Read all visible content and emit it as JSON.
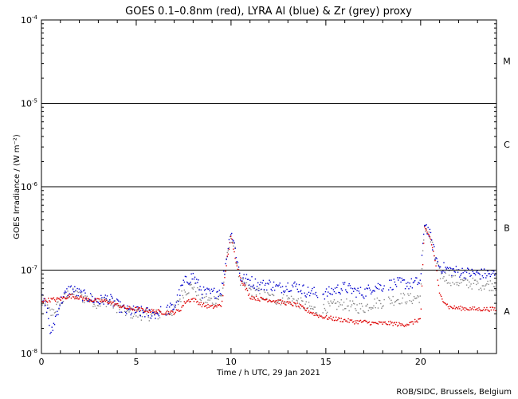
{
  "chart_data": {
    "type": "scatter",
    "title": "GOES 0.1–0.8nm (red), LYRA Al (blue) & Zr (grey) proxy",
    "xlabel": "Time / h UTC, 29 Jan 2021",
    "ylabel": "GOES Irradiance / (W m⁻²)",
    "credit": "ROB/SIDC, Brussels, Belgium",
    "xlim": [
      0,
      24
    ],
    "ylim": [
      1e-08,
      0.0001
    ],
    "yscale": "log",
    "x_ticks": [
      0,
      5,
      10,
      15,
      20
    ],
    "x_tick_labels": [
      "0",
      "5",
      "10",
      "15",
      "20"
    ],
    "y_ticks": [
      {
        "value": 0.0001,
        "base": "10",
        "exp": "-4"
      },
      {
        "value": 1e-05,
        "base": "10",
        "exp": "-5"
      },
      {
        "value": 1e-06,
        "base": "10",
        "exp": "-6"
      },
      {
        "value": 1e-07,
        "base": "10",
        "exp": "-7"
      },
      {
        "value": 1e-08,
        "base": "10",
        "exp": "-8"
      }
    ],
    "class_lines": [
      1e-05,
      1e-06,
      1e-07
    ],
    "flare_classes": [
      {
        "label": "M",
        "value": 3.2e-05
      },
      {
        "label": "C",
        "value": 3.2e-06
      },
      {
        "label": "B",
        "value": 3.2e-07
      },
      {
        "label": "A",
        "value": 3.2e-08
      }
    ],
    "series": [
      {
        "name": "GOES 0.1-0.8nm",
        "color": "#dd0000",
        "points": [
          [
            0,
            4.3e-08
          ],
          [
            0.5,
            4.4e-08
          ],
          [
            1,
            4.5e-08
          ],
          [
            1.5,
            4.9e-08
          ],
          [
            2,
            4.7e-08
          ],
          [
            2.5,
            4.4e-08
          ],
          [
            3,
            4.3e-08
          ],
          [
            3.5,
            4.2e-08
          ],
          [
            4,
            3.8e-08
          ],
          [
            4.5,
            3.5e-08
          ],
          [
            5,
            3.4e-08
          ],
          [
            5.5,
            3.3e-08
          ],
          [
            6,
            3.2e-08
          ],
          [
            6.5,
            3.1e-08
          ],
          [
            7,
            3.1e-08
          ],
          [
            7.3,
            3.3e-08
          ],
          [
            7.6,
            4.2e-08
          ],
          [
            8,
            4.5e-08
          ],
          [
            8.5,
            3.8e-08
          ],
          [
            9,
            3.6e-08
          ],
          [
            9.5,
            3.8e-08
          ],
          [
            9.8,
            1.4e-07
          ],
          [
            10,
            2.5e-07
          ],
          [
            10.2,
            1.5e-07
          ],
          [
            10.5,
            8e-08
          ],
          [
            11,
            4.8e-08
          ],
          [
            11.5,
            4.5e-08
          ],
          [
            12,
            4.4e-08
          ],
          [
            12.5,
            4.2e-08
          ],
          [
            13,
            4e-08
          ],
          [
            13.5,
            3.8e-08
          ],
          [
            14,
            3.3e-08
          ],
          [
            14.5,
            2.9e-08
          ],
          [
            15,
            2.7e-08
          ],
          [
            15.5,
            2.6e-08
          ],
          [
            16,
            2.5e-08
          ],
          [
            16.5,
            2.4e-08
          ],
          [
            17,
            2.4e-08
          ],
          [
            17.5,
            2.3e-08
          ],
          [
            18.5,
            2.3e-08
          ],
          [
            19,
            2.2e-08
          ],
          [
            19.5,
            2.3e-08
          ],
          [
            20,
            2.6e-08
          ],
          [
            20.2,
            3.2e-07
          ],
          [
            20.5,
            2.5e-07
          ],
          [
            20.8,
            1.2e-07
          ],
          [
            21,
            5e-08
          ],
          [
            21.5,
            3.6e-08
          ],
          [
            22,
            3.5e-08
          ],
          [
            23,
            3.4e-08
          ],
          [
            24,
            3.4e-08
          ]
        ]
      },
      {
        "name": "LYRA Al proxy",
        "color": "#0000cc",
        "points": [
          [
            0,
            4.5e-08
          ],
          [
            0.3,
            3.5e-08
          ],
          [
            0.5,
            1.6e-08
          ],
          [
            0.7,
            2.5e-08
          ],
          [
            1,
            4.2e-08
          ],
          [
            1.5,
            6e-08
          ],
          [
            2,
            5.2e-08
          ],
          [
            2.5,
            4.7e-08
          ],
          [
            3,
            4.2e-08
          ],
          [
            3.5,
            4.6e-08
          ],
          [
            4,
            3.8e-08
          ],
          [
            4.5,
            3.2e-08
          ],
          [
            5,
            3.2e-08
          ],
          [
            5.5,
            3.1e-08
          ],
          [
            6,
            3e-08
          ],
          [
            6.5,
            3.3e-08
          ],
          [
            7,
            3.6e-08
          ],
          [
            7.5,
            7e-08
          ],
          [
            8,
            8.5e-08
          ],
          [
            8.5,
            5.4e-08
          ],
          [
            9,
            5.2e-08
          ],
          [
            9.5,
            5.8e-08
          ],
          [
            9.8,
            1.6e-07
          ],
          [
            10,
            3e-07
          ],
          [
            10.2,
            1.9e-07
          ],
          [
            10.5,
            8e-08
          ],
          [
            11,
            7.5e-08
          ],
          [
            11.5,
            6.5e-08
          ],
          [
            12,
            6.8e-08
          ],
          [
            12.5,
            6.1e-08
          ],
          [
            13,
            6.5e-08
          ],
          [
            13.5,
            6.4e-08
          ],
          [
            14,
            5.5e-08
          ],
          [
            14.5,
            5.3e-08
          ],
          [
            15,
            5.2e-08
          ],
          [
            15.5,
            5.8e-08
          ],
          [
            16,
            6.2e-08
          ],
          [
            16.5,
            5.6e-08
          ],
          [
            17,
            5.3e-08
          ],
          [
            17.5,
            6.3e-08
          ],
          [
            18,
            6.4e-08
          ],
          [
            18.5,
            6.8e-08
          ],
          [
            19,
            7e-08
          ],
          [
            19.5,
            6.8e-08
          ],
          [
            20,
            7.3e-08
          ],
          [
            20.2,
            3.8e-07
          ],
          [
            20.5,
            2.6e-07
          ],
          [
            20.8,
            1.4e-07
          ],
          [
            21,
            1.1e-07
          ],
          [
            21.5,
            1e-07
          ],
          [
            22,
            9.6e-08
          ],
          [
            22.5,
            9.2e-08
          ],
          [
            23,
            9e-08
          ],
          [
            24,
            8.8e-08
          ]
        ]
      },
      {
        "name": "LYRA Zr proxy",
        "color": "#888888",
        "points": [
          [
            0,
            4.2e-08
          ],
          [
            0.5,
            3e-08
          ],
          [
            1,
            4e-08
          ],
          [
            1.5,
            5.4e-08
          ],
          [
            2,
            4.8e-08
          ],
          [
            2.5,
            4.5e-08
          ],
          [
            3,
            4e-08
          ],
          [
            3.5,
            4.3e-08
          ],
          [
            4,
            3.6e-08
          ],
          [
            4.5,
            3.1e-08
          ],
          [
            5,
            3e-08
          ],
          [
            5.5,
            2.9e-08
          ],
          [
            6,
            2.9e-08
          ],
          [
            6.5,
            3e-08
          ],
          [
            7,
            3.3e-08
          ],
          [
            7.5,
            5.5e-08
          ],
          [
            8,
            6.5e-08
          ],
          [
            8.5,
            4.4e-08
          ],
          [
            9,
            4.3e-08
          ],
          [
            9.5,
            4.8e-08
          ],
          [
            9.8,
            1.4e-07
          ],
          [
            10,
            2.7e-07
          ],
          [
            10.2,
            1.7e-07
          ],
          [
            10.5,
            7e-08
          ],
          [
            11,
            5.8e-08
          ],
          [
            11.5,
            5.2e-08
          ],
          [
            12,
            4.7e-08
          ],
          [
            12.5,
            4.4e-08
          ],
          [
            13,
            4.5e-08
          ],
          [
            13.5,
            4.2e-08
          ],
          [
            14,
            3.6e-08
          ],
          [
            14.5,
            3.3e-08
          ],
          [
            15,
            3.5e-08
          ],
          [
            15.5,
            3.8e-08
          ],
          [
            16,
            3.9e-08
          ],
          [
            16.5,
            3.6e-08
          ],
          [
            17,
            3.5e-08
          ],
          [
            17.5,
            4e-08
          ],
          [
            18,
            4.1e-08
          ],
          [
            18.5,
            4.4e-08
          ],
          [
            19,
            4.6e-08
          ],
          [
            19.5,
            4.5e-08
          ],
          [
            20,
            4.8e-08
          ],
          [
            20.2,
            3.5e-07
          ],
          [
            20.5,
            2.4e-07
          ],
          [
            20.8,
            1.3e-07
          ],
          [
            21,
            9e-08
          ],
          [
            21.5,
            7.8e-08
          ],
          [
            22,
            7.2e-08
          ],
          [
            22.5,
            7e-08
          ],
          [
            23,
            6.8e-08
          ],
          [
            24,
            6.6e-08
          ]
        ]
      }
    ]
  }
}
